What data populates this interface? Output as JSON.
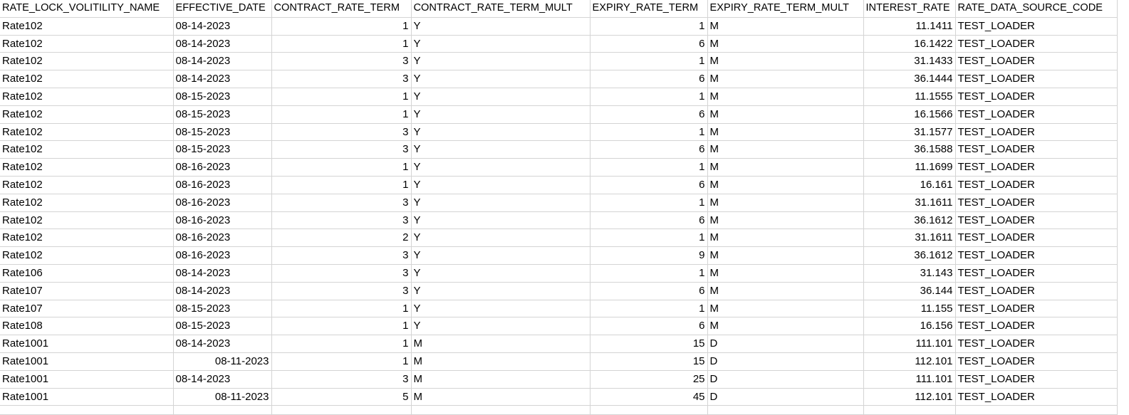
{
  "columns": [
    "RATE_LOCK_VOLITILITY_NAME",
    "EFFECTIVE_DATE",
    "CONTRACT_RATE_TERM",
    "CONTRACT_RATE_TERM_MULT",
    "EXPIRY_RATE_TERM",
    "EXPIRY_RATE_TERM_MULT",
    "INTEREST_RATE",
    "RATE_DATA_SOURCE_CODE"
  ],
  "rows": [
    {
      "name": "Rate102",
      "date": "08-14-2023",
      "date_type": "text",
      "crt": "1",
      "crt_mult": "Y",
      "ert": "1",
      "ert_mult": "M",
      "rate": "11.1411",
      "source": "TEST_LOADER"
    },
    {
      "name": "Rate102",
      "date": "08-14-2023",
      "date_type": "text",
      "crt": "1",
      "crt_mult": "Y",
      "ert": "6",
      "ert_mult": "M",
      "rate": "16.1422",
      "source": "TEST_LOADER"
    },
    {
      "name": "Rate102",
      "date": "08-14-2023",
      "date_type": "text",
      "crt": "3",
      "crt_mult": "Y",
      "ert": "1",
      "ert_mult": "M",
      "rate": "31.1433",
      "source": "TEST_LOADER"
    },
    {
      "name": "Rate102",
      "date": "08-14-2023",
      "date_type": "text",
      "crt": "3",
      "crt_mult": "Y",
      "ert": "6",
      "ert_mult": "M",
      "rate": "36.1444",
      "source": "TEST_LOADER"
    },
    {
      "name": "Rate102",
      "date": "08-15-2023",
      "date_type": "text",
      "crt": "1",
      "crt_mult": "Y",
      "ert": "1",
      "ert_mult": "M",
      "rate": "11.1555",
      "source": "TEST_LOADER"
    },
    {
      "name": "Rate102",
      "date": "08-15-2023",
      "date_type": "text",
      "crt": "1",
      "crt_mult": "Y",
      "ert": "6",
      "ert_mult": "M",
      "rate": "16.1566",
      "source": "TEST_LOADER"
    },
    {
      "name": "Rate102",
      "date": "08-15-2023",
      "date_type": "text",
      "crt": "3",
      "crt_mult": "Y",
      "ert": "1",
      "ert_mult": "M",
      "rate": "31.1577",
      "source": "TEST_LOADER"
    },
    {
      "name": "Rate102",
      "date": "08-15-2023",
      "date_type": "text",
      "crt": "3",
      "crt_mult": "Y",
      "ert": "6",
      "ert_mult": "M",
      "rate": "36.1588",
      "source": "TEST_LOADER"
    },
    {
      "name": "Rate102",
      "date": "08-16-2023",
      "date_type": "text",
      "crt": "1",
      "crt_mult": "Y",
      "ert": "1",
      "ert_mult": "M",
      "rate": "11.1699",
      "source": "TEST_LOADER"
    },
    {
      "name": "Rate102",
      "date": "08-16-2023",
      "date_type": "text",
      "crt": "1",
      "crt_mult": "Y",
      "ert": "6",
      "ert_mult": "M",
      "rate": "16.161",
      "source": "TEST_LOADER"
    },
    {
      "name": "Rate102",
      "date": "08-16-2023",
      "date_type": "text",
      "crt": "3",
      "crt_mult": "Y",
      "ert": "1",
      "ert_mult": "M",
      "rate": "31.1611",
      "source": "TEST_LOADER"
    },
    {
      "name": "Rate102",
      "date": "08-16-2023",
      "date_type": "text",
      "crt": "3",
      "crt_mult": "Y",
      "ert": "6",
      "ert_mult": "M",
      "rate": "36.1612",
      "source": "TEST_LOADER"
    },
    {
      "name": "Rate102",
      "date": "08-16-2023",
      "date_type": "text",
      "crt": "2",
      "crt_mult": "Y",
      "ert": "1",
      "ert_mult": "M",
      "rate": "31.1611",
      "source": "TEST_LOADER"
    },
    {
      "name": "Rate102",
      "date": "08-16-2023",
      "date_type": "text",
      "crt": "3",
      "crt_mult": "Y",
      "ert": "9",
      "ert_mult": "M",
      "rate": "36.1612",
      "source": "TEST_LOADER"
    },
    {
      "name": "Rate106",
      "date": "08-14-2023",
      "date_type": "text",
      "crt": "3",
      "crt_mult": "Y",
      "ert": "1",
      "ert_mult": "M",
      "rate": "31.143",
      "source": "TEST_LOADER"
    },
    {
      "name": "Rate107",
      "date": "08-14-2023",
      "date_type": "text",
      "crt": "3",
      "crt_mult": "Y",
      "ert": "6",
      "ert_mult": "M",
      "rate": "36.144",
      "source": "TEST_LOADER"
    },
    {
      "name": "Rate107",
      "date": "08-15-2023",
      "date_type": "text",
      "crt": "1",
      "crt_mult": "Y",
      "ert": "1",
      "ert_mult": "M",
      "rate": "11.155",
      "source": "TEST_LOADER"
    },
    {
      "name": "Rate108",
      "date": "08-15-2023",
      "date_type": "text",
      "crt": "1",
      "crt_mult": "Y",
      "ert": "6",
      "ert_mult": "M",
      "rate": "16.156",
      "source": "TEST_LOADER"
    },
    {
      "name": "Rate1001",
      "date": "08-14-2023",
      "date_type": "text",
      "crt": "1",
      "crt_mult": "M",
      "ert": "15",
      "ert_mult": "D",
      "rate": "111.101",
      "source": "TEST_LOADER"
    },
    {
      "name": "Rate1001",
      "date": "08-11-2023",
      "date_type": "date",
      "crt": "1",
      "crt_mult": "M",
      "ert": "15",
      "ert_mult": "D",
      "rate": "112.101",
      "source": "TEST_LOADER"
    },
    {
      "name": "Rate1001",
      "date": "08-14-2023",
      "date_type": "text",
      "crt": "3",
      "crt_mult": "M",
      "ert": "25",
      "ert_mult": "D",
      "rate": "111.101",
      "source": "TEST_LOADER"
    },
    {
      "name": "Rate1001",
      "date": "08-11-2023",
      "date_type": "date",
      "crt": "5",
      "crt_mult": "M",
      "ert": "45",
      "ert_mult": "D",
      "rate": "112.101",
      "source": "TEST_LOADER"
    }
  ]
}
